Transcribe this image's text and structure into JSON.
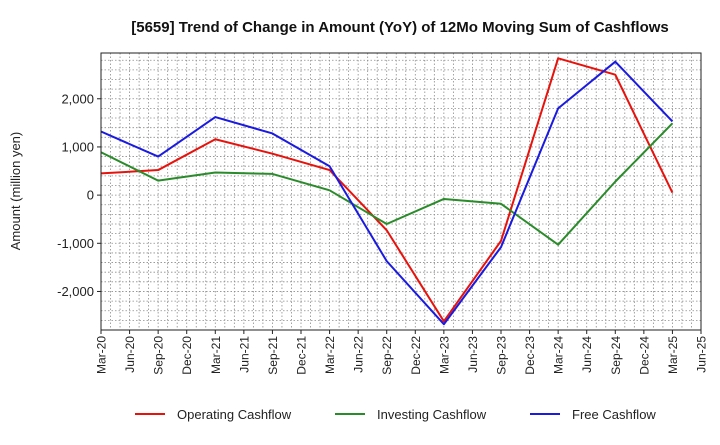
{
  "chart_data": {
    "type": "line",
    "title": "[5659]  Trend of Change in Amount (YoY) of 12Mo Moving Sum of Cashflows",
    "ylabel": "Amount (million yen)",
    "xlabel": "",
    "ylim": [
      -2800,
      2950
    ],
    "yticks": [
      2000,
      1000,
      0,
      -1000,
      -2000
    ],
    "ytick_labels": [
      "2,000",
      "1,000",
      "0",
      "-1,000",
      "-2,000"
    ],
    "categories": [
      "Mar-20",
      "Jun-20",
      "Sep-20",
      "Dec-20",
      "Mar-21",
      "Jun-21",
      "Sep-21",
      "Dec-21",
      "Mar-22",
      "Jun-22",
      "Sep-22",
      "Dec-22",
      "Mar-23",
      "Jun-23",
      "Sep-23",
      "Dec-23",
      "Mar-24",
      "Jun-24",
      "Sep-24",
      "Dec-24",
      "Mar-25",
      "Jun-25"
    ],
    "grid": true,
    "legend_position": "bottom",
    "series": [
      {
        "name": "Operating Cashflow",
        "color": "#e8120c",
        "points": [
          [
            0,
            450
          ],
          [
            2,
            520
          ],
          [
            4,
            1160
          ],
          [
            6,
            860
          ],
          [
            8,
            520
          ],
          [
            10,
            -730
          ],
          [
            12,
            -2620
          ],
          [
            14,
            -950
          ],
          [
            16,
            2840
          ],
          [
            18,
            2500
          ],
          [
            20,
            50
          ]
        ]
      },
      {
        "name": "Investing Cashflow",
        "color": "#2a8b2a",
        "points": [
          [
            0,
            890
          ],
          [
            2,
            300
          ],
          [
            4,
            470
          ],
          [
            6,
            440
          ],
          [
            8,
            100
          ],
          [
            10,
            -600
          ],
          [
            12,
            -80
          ],
          [
            14,
            -180
          ],
          [
            16,
            -1030
          ],
          [
            18,
            280
          ],
          [
            20,
            1490
          ]
        ]
      },
      {
        "name": "Free Cashflow",
        "color": "#1a1ae0",
        "points": [
          [
            0,
            1320
          ],
          [
            2,
            800
          ],
          [
            4,
            1620
          ],
          [
            6,
            1280
          ],
          [
            8,
            600
          ],
          [
            10,
            -1370
          ],
          [
            12,
            -2680
          ],
          [
            14,
            -1080
          ],
          [
            16,
            1800
          ],
          [
            18,
            2770
          ],
          [
            20,
            1530
          ]
        ]
      }
    ]
  }
}
